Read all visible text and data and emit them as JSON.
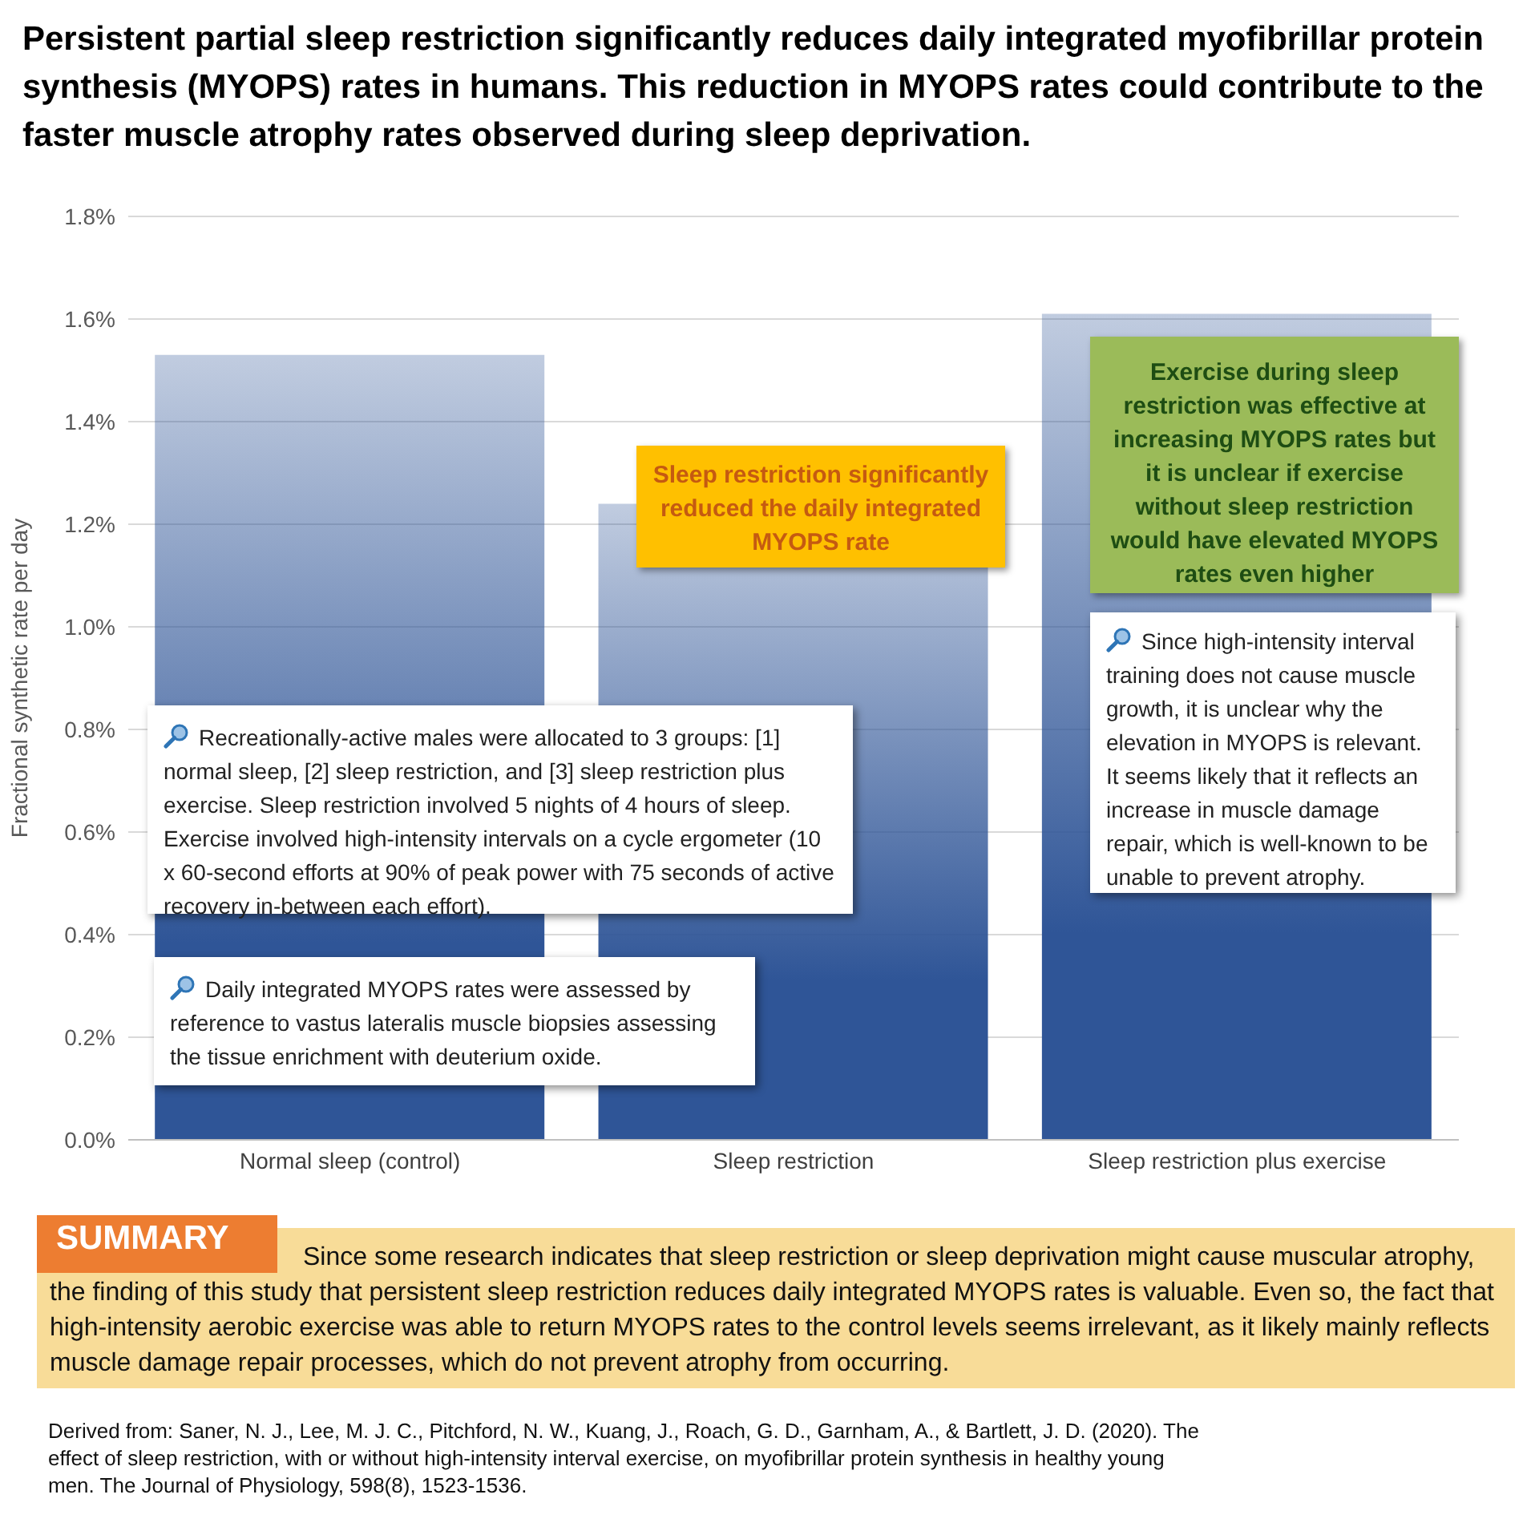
{
  "chart_data": {
    "type": "bar",
    "title": "Persistent partial sleep restriction significantly reduces daily integrated myofibrillar protein synthesis (MYOPS) rates in humans. This reduction in MYOPS rates could contribute to the faster muscle atrophy rates observed during sleep deprivation.",
    "ylabel": "Fractional synthetic rate per day",
    "categories": [
      "Normal sleep (control)",
      "Sleep restriction",
      "Sleep restriction plus exercise"
    ],
    "series": [
      {
        "color": "#2f5597",
        "values": [
          1.53,
          1.24,
          1.61
        ]
      }
    ],
    "ylim": [
      0,
      1.8
    ],
    "yticks": [
      {
        "value": 0,
        "label": "0.0%"
      },
      {
        "value": 0.2,
        "label": "0.2%"
      },
      {
        "value": 0.4,
        "label": "0.4%"
      },
      {
        "value": 0.6,
        "label": "0.6%"
      },
      {
        "value": 0.8,
        "label": "0.8%"
      },
      {
        "value": 1.0,
        "label": "1.0%"
      },
      {
        "value": 1.2,
        "label": "1.2%"
      },
      {
        "value": 1.4,
        "label": "1.4%"
      },
      {
        "value": 1.6,
        "label": "1.6%"
      },
      {
        "value": 1.8,
        "label": "1.8%"
      }
    ],
    "grid": "y",
    "legend": false,
    "annotations": [
      "Sleep restriction significantly reduced the daily integrated MYOPS rate",
      "Exercise during sleep restriction was effective at increasing MYOPS rates but it is unclear if exercise without sleep restriction would have elevated MYOPS rates even higher",
      "Recreationally-active males were allocated to 3 groups: [1] normal sleep, [2] sleep restriction, and [3] sleep restriction plus exercise. Sleep restriction involved 5 nights of 4 hours of sleep. Exercise involved high-intensity intervals on a cycle ergometer (10 x 60-second efforts at 90% of peak power with 75 seconds of active recovery in-between each effort).",
      "Daily integrated MYOPS rates were assessed by reference to vastus lateralis muscle biopsies assessing the tissue enrichment with deuterium oxide.",
      "Since high-intensity interval training does not cause muscle growth, it is unclear why the elevation in MYOPS is relevant. It seems likely that it reflects an increase in muscle damage repair, which is well-known to be unable to prevent atrophy.",
      "SUMMARY",
      "Since some research indicates that sleep restriction or sleep deprivation might cause muscular atrophy, the finding of this study that persistent sleep restriction reduces daily integrated MYOPS rates is valuable. Even so, the fact that high-intensity aerobic exercise was able to return MYOPS rates to the control levels seems irrelevant, as it likely mainly reflects muscle damage repair processes, which do not prevent atrophy from occurring.",
      "Derived from: Saner, N. J., Lee, M. J. C., Pitchford, N. W., Kuang, J., Roach, G. D., Garnham, A., & Bartlett, J. D. (2020). The effect of sleep restriction, with or without high-intensity interval exercise, on myofibrillar protein synthesis in healthy young men. The Journal of Physiology, 598(8), 1523-1536."
    ]
  }
}
